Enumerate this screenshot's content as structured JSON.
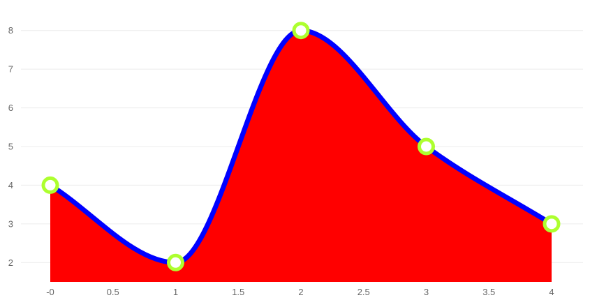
{
  "chart_data": {
    "type": "area",
    "title": "",
    "xlabel": "",
    "ylabel": "",
    "x": [
      0,
      1,
      2,
      3,
      4
    ],
    "series": [
      {
        "values": [
          4,
          2,
          8,
          5,
          3
        ]
      }
    ],
    "xlim": [
      0,
      4
    ],
    "ylim": [
      1.5,
      8.5
    ],
    "x_ticks": [
      {
        "value": 0,
        "label": "-0"
      },
      {
        "value": 0.5,
        "label": "0.5"
      },
      {
        "value": 1,
        "label": "1"
      },
      {
        "value": 1.5,
        "label": "1.5"
      },
      {
        "value": 2,
        "label": "2"
      },
      {
        "value": 2.5,
        "label": "2.5"
      },
      {
        "value": 3,
        "label": "3"
      },
      {
        "value": 3.5,
        "label": "3.5"
      },
      {
        "value": 4,
        "label": "4"
      }
    ],
    "y_ticks": [
      {
        "value": 2,
        "label": "2"
      },
      {
        "value": 3,
        "label": "3"
      },
      {
        "value": 4,
        "label": "4"
      },
      {
        "value": 5,
        "label": "5"
      },
      {
        "value": 6,
        "label": "6"
      },
      {
        "value": 7,
        "label": "7"
      },
      {
        "value": 8,
        "label": "8"
      }
    ],
    "grid": "horizontal",
    "legend": "none",
    "colors": {
      "area_fill": "#ff0000",
      "line_stroke": "#0000ff",
      "marker_stroke": "#adff2f",
      "marker_fill": "#ffffff",
      "gridline": "#ececec",
      "tick_text": "#666666"
    }
  }
}
